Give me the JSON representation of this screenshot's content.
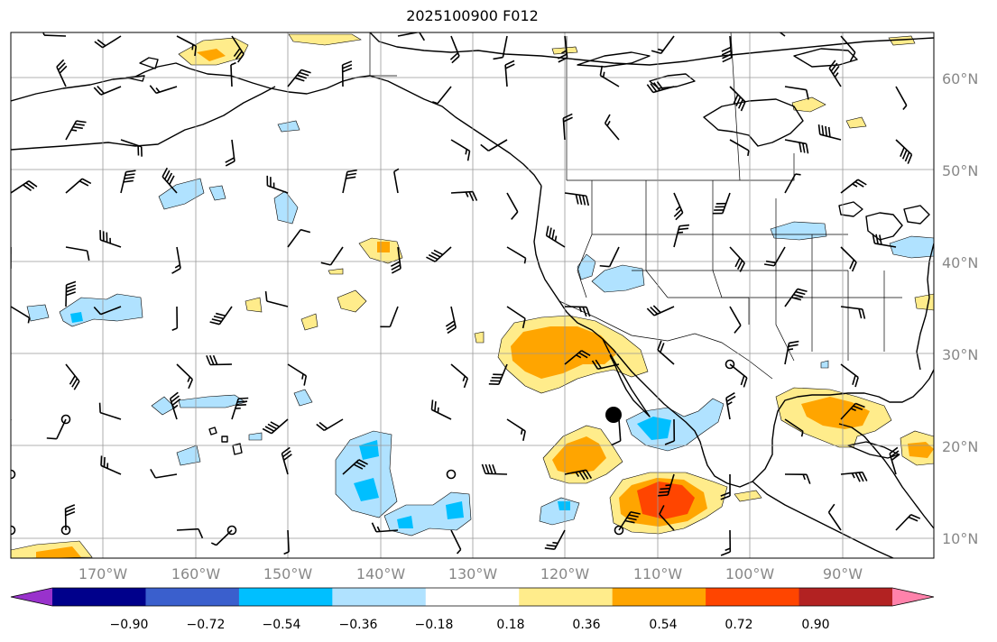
{
  "title": "2025100900 F012",
  "latitude_labels": [
    "10°N",
    "20°N",
    "30°N",
    "40°N",
    "50°N",
    "60°N"
  ],
  "longitude_labels": [
    "170°W",
    "160°W",
    "150°W",
    "140°W",
    "130°W",
    "120°W",
    "110°W",
    "100°W",
    "90°W"
  ],
  "colorbar": {
    "ticks": [
      "−0.90",
      "−0.72",
      "−0.54",
      "−0.36",
      "−0.18",
      "0.18",
      "0.36",
      "0.54",
      "0.72",
      "0.90"
    ],
    "colors": [
      "#9932CC",
      "#00008B",
      "#3A5FCD",
      "#00BFFF",
      "#B0E2FF",
      "#FFFFFF",
      "#FFEC8B",
      "#FFA500",
      "#FF4500",
      "#B22222",
      "#FF82AB"
    ]
  },
  "colors": {
    "grid": "#999999",
    "coast": "#000000",
    "axis_label": "#888888"
  }
}
